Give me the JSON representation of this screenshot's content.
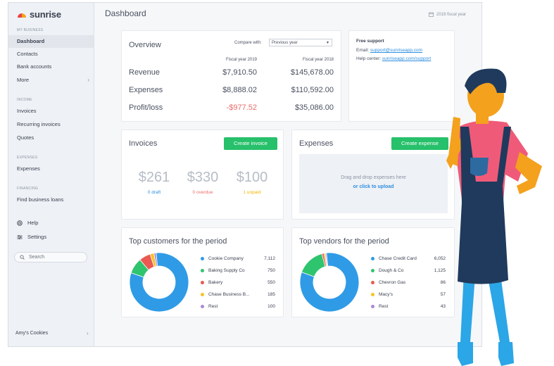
{
  "app": {
    "name": "sunrise",
    "fiscal_label": "2019 fiscal year",
    "page_title": "Dashboard"
  },
  "colors": {
    "accent_green": "#27c06b",
    "link_blue": "#2f8fe0",
    "negative_red": "#ea6c6c",
    "logo_red": "#e8433f",
    "logo_orange": "#f4a11e"
  },
  "sidebar": {
    "sections": {
      "my_business": "MY BUSINESS",
      "income": "INCOME",
      "expenses": "EXPENSES",
      "financing": "FINANCING"
    },
    "items": {
      "dashboard": "Dashboard",
      "contacts": "Contacts",
      "bank_accounts": "Bank accounts",
      "more": "More",
      "invoices": "Invoices",
      "recurring_invoices": "Recurring invoices",
      "quotes": "Quotes",
      "expenses": "Expenses",
      "find_business_loans": "Find business loans",
      "help": "Help",
      "settings": "Settings"
    },
    "search_placeholder": "Search",
    "company": "Amy's Cookies"
  },
  "overview": {
    "title": "Overview",
    "compare_label": "Compare with:",
    "compare_value": "Previous year",
    "col_2019": "Fiscal year 2019",
    "col_2018": "Fiscal year 2018",
    "rows": [
      {
        "label": "Revenue",
        "v2019": "$7,910.50",
        "v2018": "$145,678.00"
      },
      {
        "label": "Expenses",
        "v2019": "$8,888.02",
        "v2018": "$110,592.00"
      },
      {
        "label": "Profit/loss",
        "v2019": "-$977.52",
        "v2018": "$35,086.00"
      }
    ]
  },
  "support": {
    "title": "Free support",
    "email_label": "Email:",
    "email": "support@sunriseapp.com",
    "help_label": "Help center:",
    "help_url": "sunriseapp.com/support"
  },
  "invoices": {
    "title": "Invoices",
    "button": "Create invoice",
    "stats": [
      {
        "value": "$261",
        "label": "0 draft",
        "color": "#2f8fe0"
      },
      {
        "value": "$330",
        "label": "0 overdue",
        "color": "#ea6c6c"
      },
      {
        "value": "$100",
        "label": "1 unpaid",
        "color": "#f4b400"
      }
    ]
  },
  "expenses_card": {
    "title": "Expenses",
    "button": "Create expense",
    "drop_text": "Drag and drop expenses here",
    "upload_link": "or click to upload"
  },
  "top_customers": {
    "title": "Top customers for the period",
    "rows": [
      {
        "name": "Cookie Company",
        "value": "7,112",
        "color": "#2f9be6"
      },
      {
        "name": "Baking Supply Co",
        "value": "750",
        "color": "#2fc46e"
      },
      {
        "name": "Bakery",
        "value": "550",
        "color": "#ea5a50"
      },
      {
        "name": "Chase Business B...",
        "value": "185",
        "color": "#f5c22a"
      },
      {
        "name": "Rest",
        "value": "100",
        "color": "#a98bd9"
      }
    ]
  },
  "top_vendors": {
    "title": "Top vendors for the period",
    "rows": [
      {
        "name": "Chase Credit Card",
        "value": "6,052",
        "color": "#2f9be6"
      },
      {
        "name": "Dough & Co",
        "value": "1,125",
        "color": "#2fc46e"
      },
      {
        "name": "Chevron Gas",
        "value": "86",
        "color": "#ea5a50"
      },
      {
        "name": "Macy's",
        "value": "57",
        "color": "#f5c22a"
      },
      {
        "name": "Rest",
        "value": "43",
        "color": "#a98bd9"
      }
    ]
  },
  "chart_data": [
    {
      "type": "pie",
      "title": "Top customers for the period",
      "categories": [
        "Cookie Company",
        "Baking Supply Co",
        "Bakery",
        "Chase Business B...",
        "Rest"
      ],
      "values": [
        7112,
        750,
        550,
        185,
        100
      ]
    },
    {
      "type": "pie",
      "title": "Top vendors for the period",
      "categories": [
        "Chase Credit Card",
        "Dough & Co",
        "Chevron Gas",
        "Macy's",
        "Rest"
      ],
      "values": [
        6052,
        1125,
        86,
        57,
        43
      ]
    }
  ]
}
